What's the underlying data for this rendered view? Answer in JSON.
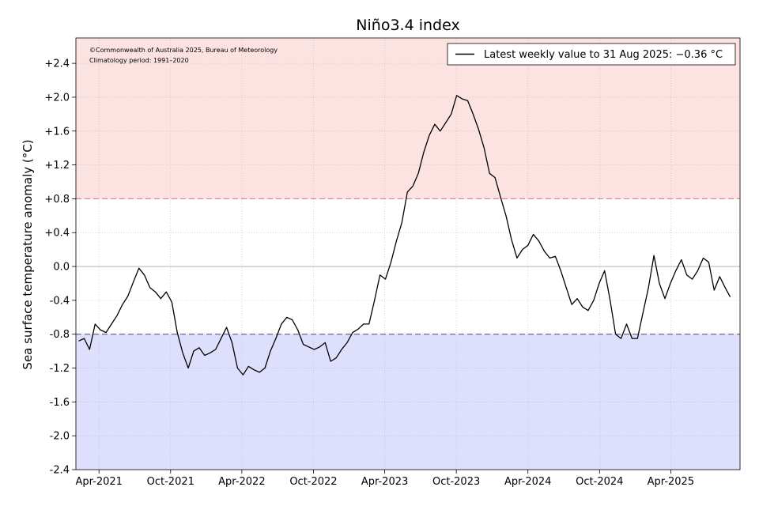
{
  "chart_data": {
    "type": "line",
    "title": "Niño3.4 index",
    "ylabel": "Sea surface temperature anomaly (°C)",
    "xlabel": "",
    "credit_line1": "©Commonwealth of Australia 2025, Bureau of Meteorology",
    "credit_line2": "Climatology period: 1991–2020",
    "legend_label": "Latest weekly value to 31 Aug 2025: −0.36 °C",
    "legend_position": "top-right",
    "ylim": [
      -2.4,
      2.7
    ],
    "xlim": [
      "2021-02-01",
      "2025-09-25"
    ],
    "y_ticks": [
      2.4,
      2.0,
      1.6,
      1.2,
      0.8,
      0.4,
      0.0,
      -0.4,
      -0.8,
      -1.2,
      -1.6,
      -2.0,
      -2.4
    ],
    "y_tick_labels": [
      "+2.4",
      "+2.0",
      "+1.6",
      "+1.2",
      "+0.8",
      "+0.4",
      "0.0",
      "-0.4",
      "-0.8",
      "-1.2",
      "-1.6",
      "-2.0",
      "-2.4"
    ],
    "x_ticks": [
      "2021-04-01",
      "2021-10-01",
      "2022-04-01",
      "2022-10-01",
      "2023-04-01",
      "2023-10-01",
      "2024-04-01",
      "2024-10-01",
      "2025-04-01"
    ],
    "x_tick_labels": [
      "Apr-2021",
      "Oct-2021",
      "Apr-2022",
      "Oct-2022",
      "Apr-2023",
      "Oct-2023",
      "Apr-2024",
      "Oct-2024",
      "Apr-2025"
    ],
    "el_nino_threshold": 0.8,
    "la_nina_threshold": -0.8,
    "grid": true,
    "colors": {
      "warm_region": "#fde2e2",
      "cool_region": "#dedffc",
      "warm_line": "#f08080",
      "cool_line": "#5a5a8a",
      "series": "#000000"
    },
    "series": [
      {
        "x": [
          "2021-02-08",
          "2021-02-22",
          "2021-03-08",
          "2021-03-22",
          "2021-04-05",
          "2021-04-19",
          "2021-05-03",
          "2021-05-17",
          "2021-05-31",
          "2021-06-14",
          "2021-06-28",
          "2021-07-12",
          "2021-07-26",
          "2021-08-09",
          "2021-08-23",
          "2021-09-06",
          "2021-09-20",
          "2021-10-04",
          "2021-10-18",
          "2021-11-01",
          "2021-11-15",
          "2021-11-29",
          "2021-12-13",
          "2021-12-27",
          "2022-01-10",
          "2022-01-24",
          "2022-02-07",
          "2022-02-21",
          "2022-03-07",
          "2022-03-21",
          "2022-04-04",
          "2022-04-18",
          "2022-05-02",
          "2022-05-16",
          "2022-05-30",
          "2022-06-13",
          "2022-06-27",
          "2022-07-11",
          "2022-07-25",
          "2022-08-08",
          "2022-08-22",
          "2022-09-05",
          "2022-09-19",
          "2022-10-03",
          "2022-10-17",
          "2022-10-31",
          "2022-11-14",
          "2022-11-28",
          "2022-12-12",
          "2022-12-26",
          "2023-01-09",
          "2023-01-23",
          "2023-02-06",
          "2023-02-20",
          "2023-03-06",
          "2023-03-20",
          "2023-04-03",
          "2023-04-17",
          "2023-05-01",
          "2023-05-15",
          "2023-05-29",
          "2023-06-12",
          "2023-06-26",
          "2023-07-10",
          "2023-07-24",
          "2023-08-07",
          "2023-08-21",
          "2023-09-04",
          "2023-09-18",
          "2023-10-02",
          "2023-10-16",
          "2023-10-30",
          "2023-11-13",
          "2023-11-27",
          "2023-12-11",
          "2023-12-25",
          "2024-01-08",
          "2024-01-22",
          "2024-02-05",
          "2024-02-19",
          "2024-03-04",
          "2024-03-18",
          "2024-04-01",
          "2024-04-15",
          "2024-04-29",
          "2024-05-13",
          "2024-05-27",
          "2024-06-10",
          "2024-06-24",
          "2024-07-08",
          "2024-07-22",
          "2024-08-05",
          "2024-08-19",
          "2024-09-02",
          "2024-09-16",
          "2024-09-30",
          "2024-10-14",
          "2024-10-28",
          "2024-11-11",
          "2024-11-25",
          "2024-12-09",
          "2024-12-23",
          "2025-01-06",
          "2025-01-20",
          "2025-02-03",
          "2025-02-17",
          "2025-03-03",
          "2025-03-17",
          "2025-03-31",
          "2025-04-14",
          "2025-04-28",
          "2025-05-12",
          "2025-05-26",
          "2025-06-09",
          "2025-06-23",
          "2025-07-07",
          "2025-07-21",
          "2025-08-04",
          "2025-08-18",
          "2025-08-31"
        ],
        "y": [
          -0.88,
          -0.85,
          -0.98,
          -0.68,
          -0.75,
          -0.78,
          -0.68,
          -0.58,
          -0.45,
          -0.35,
          -0.18,
          -0.02,
          -0.1,
          -0.25,
          -0.3,
          -0.38,
          -0.3,
          -0.42,
          -0.78,
          -1.02,
          -1.2,
          -1.0,
          -0.96,
          -1.05,
          -1.02,
          -0.98,
          -0.85,
          -0.72,
          -0.9,
          -1.2,
          -1.28,
          -1.18,
          -1.22,
          -1.25,
          -1.2,
          -1.0,
          -0.85,
          -0.68,
          -0.6,
          -0.63,
          -0.75,
          -0.92,
          -0.95,
          -0.98,
          -0.95,
          -0.9,
          -1.12,
          -1.08,
          -0.98,
          -0.9,
          -0.78,
          -0.74,
          -0.68,
          -0.68,
          -0.4,
          -0.1,
          -0.15,
          0.05,
          0.3,
          0.52,
          0.88,
          0.95,
          1.1,
          1.35,
          1.55,
          1.68,
          1.6,
          1.7,
          1.8,
          2.02,
          1.98,
          1.96,
          1.8,
          1.62,
          1.4,
          1.1,
          1.05,
          0.82,
          0.6,
          0.32,
          0.1,
          0.2,
          0.25,
          0.38,
          0.3,
          0.18,
          0.1,
          0.12,
          -0.05,
          -0.25,
          -0.45,
          -0.38,
          -0.48,
          -0.52,
          -0.4,
          -0.2,
          -0.05,
          -0.4,
          -0.8,
          -0.85,
          -0.68,
          -0.85,
          -0.85,
          -0.55,
          -0.25,
          0.13,
          -0.2,
          -0.38,
          -0.2,
          -0.05,
          0.08,
          -0.1,
          -0.15,
          -0.05,
          0.1,
          0.05,
          -0.28,
          -0.12,
          -0.25,
          -0.36
        ]
      }
    ]
  }
}
